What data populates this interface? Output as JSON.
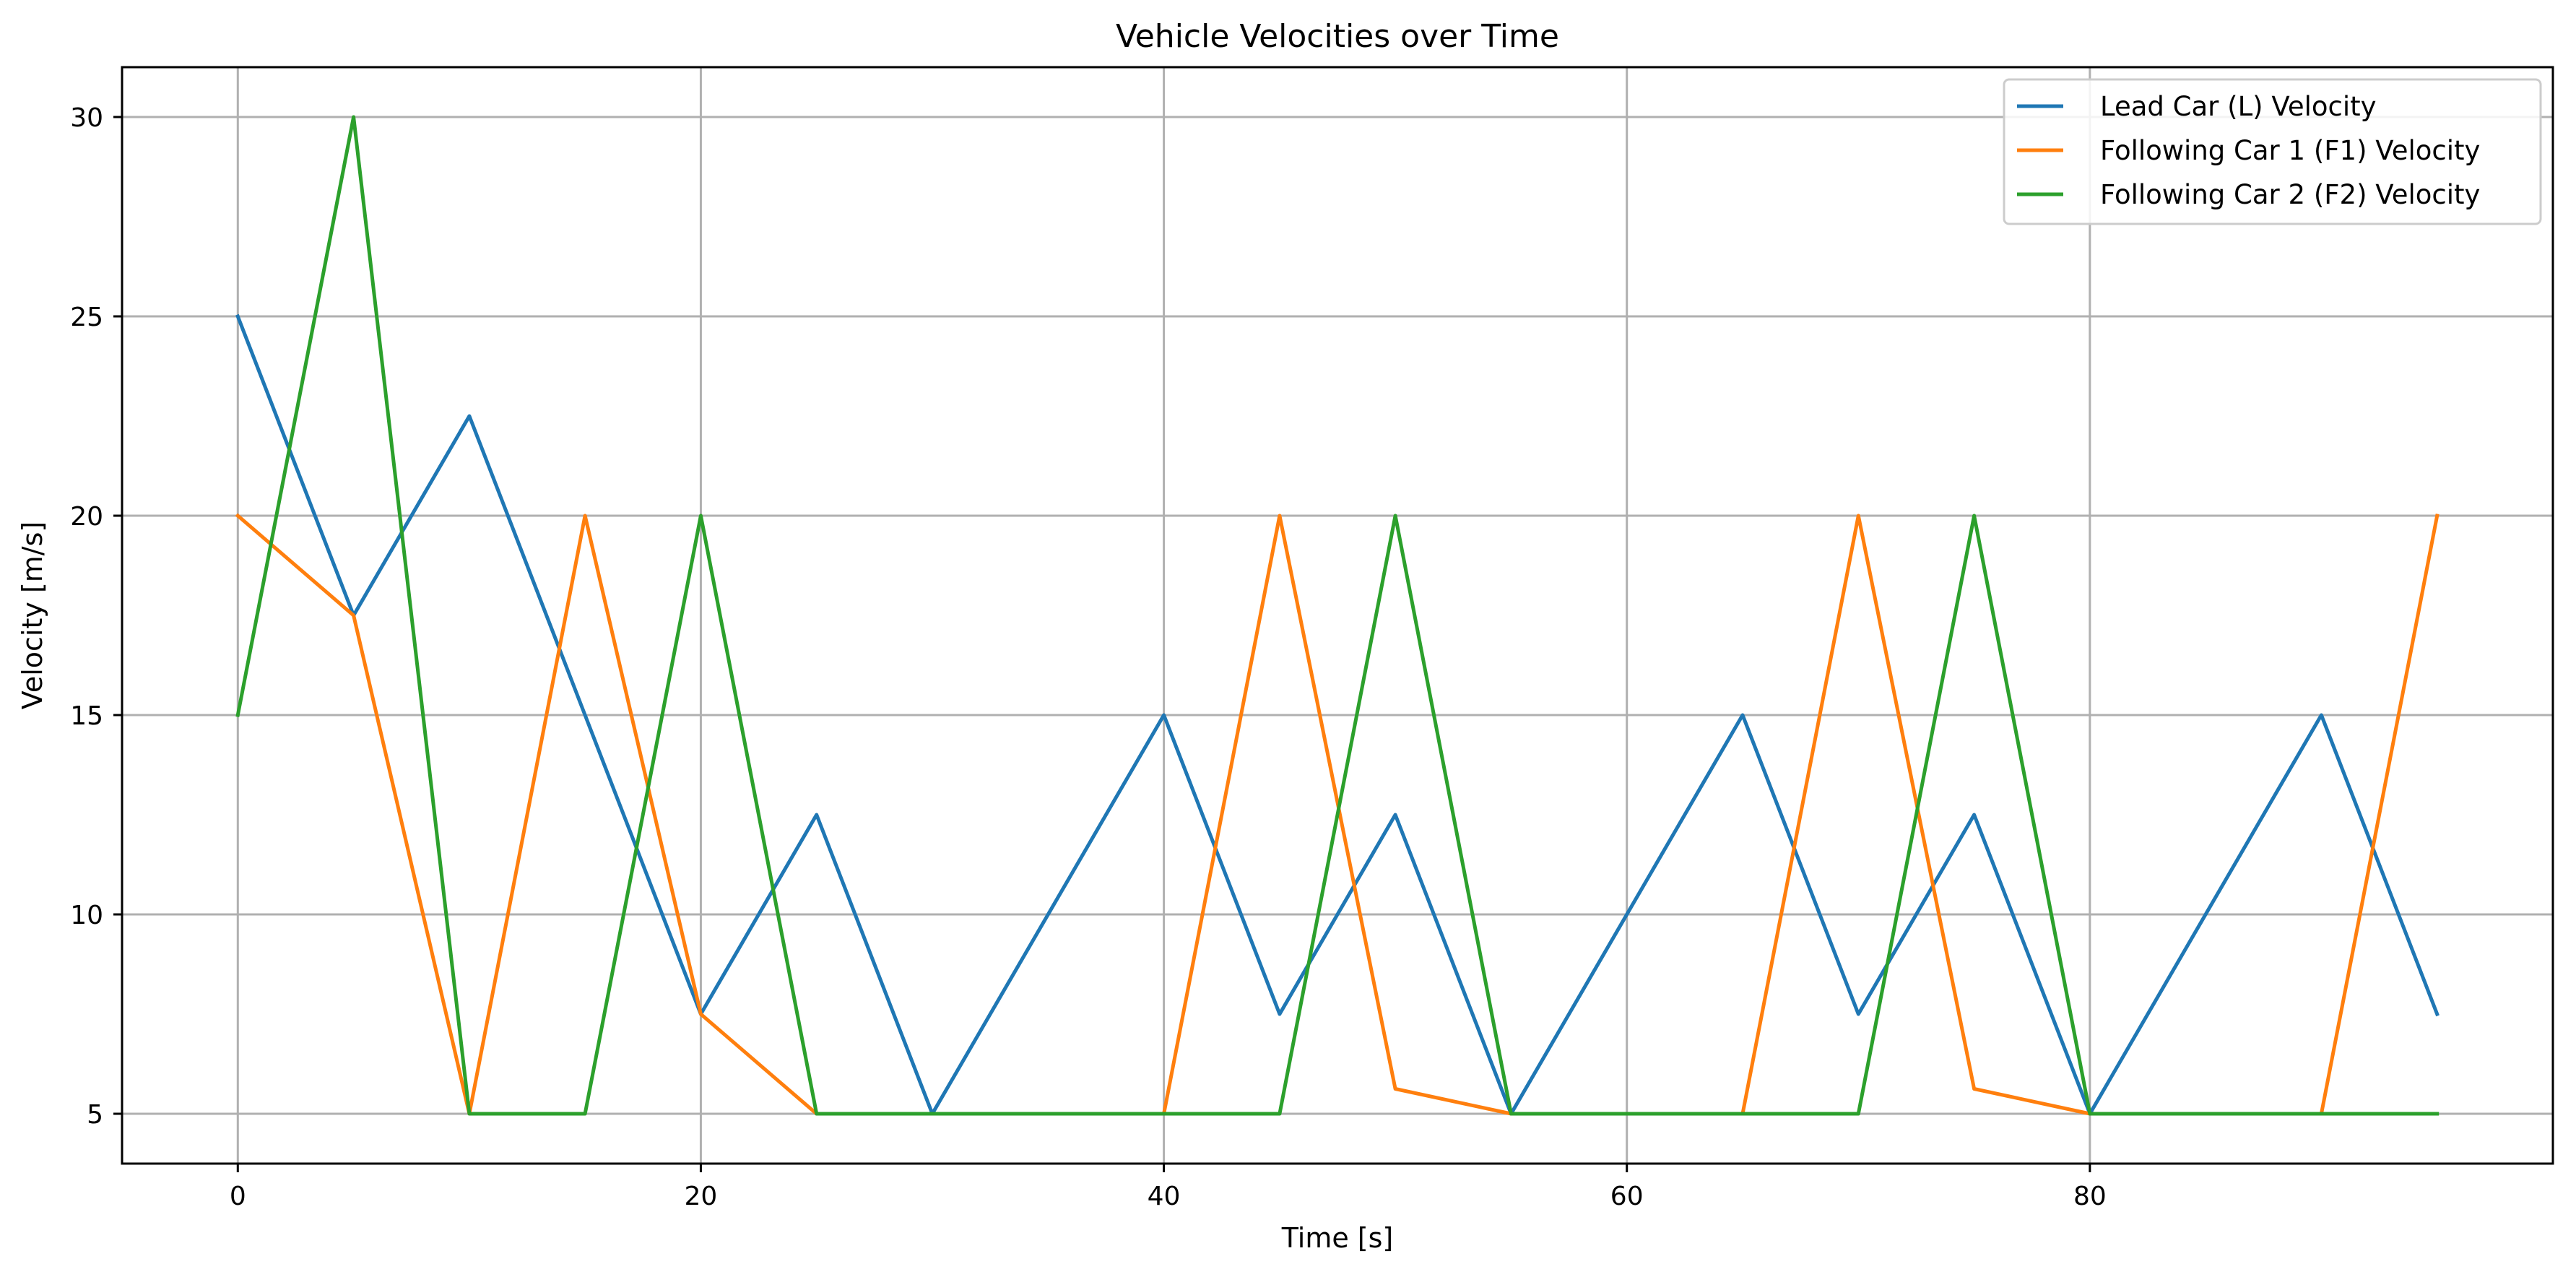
{
  "chart_data": {
    "type": "line",
    "title": "Vehicle Velocities over Time",
    "xlabel": "Time [s]",
    "ylabel": "Velocity [m/s]",
    "xlim": [
      -5,
      100
    ],
    "ylim": [
      3.75,
      31.25
    ],
    "xticks": [
      0,
      20,
      40,
      60,
      80
    ],
    "yticks": [
      5,
      10,
      15,
      20,
      25,
      30
    ],
    "grid": true,
    "legend_position": "top-right",
    "x": [
      0,
      5,
      10,
      15,
      20,
      25,
      30,
      35,
      40,
      45,
      50,
      55,
      60,
      65,
      70,
      75,
      80,
      85,
      90,
      95
    ],
    "series": [
      {
        "name": "Lead Car (L) Velocity",
        "color": "#1f77b4",
        "values": [
          25,
          17.5,
          22.5,
          15,
          7.5,
          12.5,
          5,
          10,
          15,
          7.5,
          12.5,
          5,
          10,
          15,
          7.5,
          12.5,
          5,
          10,
          15,
          7.5
        ]
      },
      {
        "name": "Following Car 1 (F1) Velocity",
        "color": "#ff7f0e",
        "values": [
          20,
          17.5,
          5,
          20,
          7.5,
          5,
          5,
          5,
          5,
          20,
          5.625,
          5,
          5,
          5,
          20,
          5.625,
          5,
          5,
          5,
          20
        ]
      },
      {
        "name": "Following Car 2 (F2) Velocity",
        "color": "#2ca02c",
        "values": [
          15,
          30,
          5,
          5,
          20,
          5,
          5,
          5,
          5,
          5,
          20,
          5,
          5,
          5,
          5,
          20,
          5,
          5,
          5,
          5
        ]
      }
    ]
  }
}
